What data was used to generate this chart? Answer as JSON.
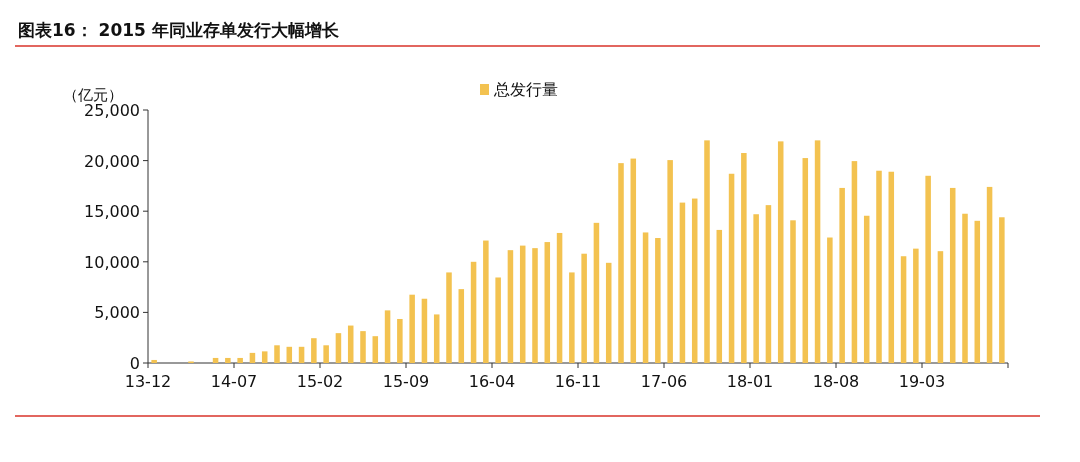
{
  "chart_data": {
    "type": "bar",
    "title": "图表16：  2015 年同业存单发行大幅增长",
    "ylabel": "（亿元）",
    "categories": [
      "13-12",
      null,
      null,
      null,
      null,
      null,
      null,
      "14-07",
      null,
      null,
      null,
      null,
      null,
      null,
      "15-02",
      null,
      null,
      null,
      null,
      null,
      null,
      "15-09",
      null,
      null,
      null,
      null,
      null,
      null,
      "16-04",
      null,
      null,
      null,
      null,
      null,
      null,
      "16-11",
      null,
      null,
      null,
      null,
      null,
      null,
      "17-06",
      null,
      null,
      null,
      null,
      null,
      null,
      "18-01",
      null,
      null,
      null,
      null,
      null,
      null,
      "18-08",
      null,
      null,
      null,
      null,
      null,
      null,
      "19-03",
      null,
      null,
      null,
      null,
      null,
      null
    ],
    "series": [
      {
        "name": "总发行量",
        "color": "#f3c250",
        "values": [
          300,
          0,
          0,
          150,
          0,
          500,
          500,
          500,
          1000,
          1150,
          1750,
          1600,
          1600,
          2450,
          1750,
          2950,
          3700,
          3150,
          2650,
          5200,
          4350,
          6750,
          6350,
          4800,
          8950,
          7300,
          10000,
          12100,
          8450,
          11150,
          11600,
          11350,
          11950,
          12850,
          8950,
          10800,
          13850,
          9900,
          19750,
          20200,
          12900,
          12350,
          20050,
          15850,
          16250,
          22000,
          13150,
          18700,
          20750,
          14700,
          15600,
          21900,
          14100,
          20250,
          22000,
          12400,
          17300,
          19950,
          14550,
          19000,
          18900,
          10550,
          11300,
          18500,
          11050,
          17300,
          14750,
          14050,
          17400,
          14400
        ]
      }
    ],
    "ylim": [
      0,
      25000
    ],
    "yticks": [
      {
        "value": 0,
        "label": "0"
      },
      {
        "value": 5000,
        "label": "5,000"
      },
      {
        "value": 10000,
        "label": "10,000"
      },
      {
        "value": 15000,
        "label": "15,000"
      },
      {
        "value": 20000,
        "label": "20,000"
      },
      {
        "value": 25000,
        "label": "25,000"
      }
    ],
    "legend": "top"
  }
}
